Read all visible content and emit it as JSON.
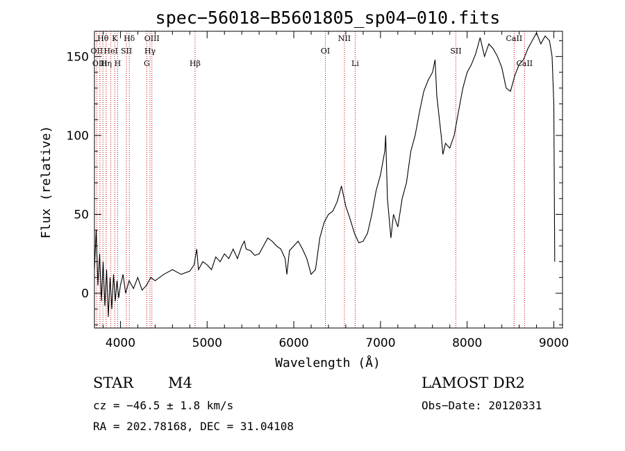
{
  "chart_data": {
    "type": "line",
    "title": "spec−56018−B5601805_sp04−010.fits",
    "xlabel": "Wavelength (Å)",
    "ylabel": "Flux (relative)",
    "xlim": [
      3700,
      9100
    ],
    "ylim": [
      -22,
      166
    ],
    "x_ticks": [
      4000,
      5000,
      6000,
      7000,
      8000,
      9000
    ],
    "y_ticks": [
      0,
      50,
      100,
      150
    ],
    "grid": false,
    "series": [
      {
        "color": "#000000",
        "points": [
          [
            3700,
            15
          ],
          [
            3720,
            40
          ],
          [
            3740,
            5
          ],
          [
            3760,
            25
          ],
          [
            3780,
            -5
          ],
          [
            3800,
            20
          ],
          [
            3820,
            -8
          ],
          [
            3840,
            15
          ],
          [
            3860,
            -15
          ],
          [
            3880,
            10
          ],
          [
            3900,
            -10
          ],
          [
            3920,
            12
          ],
          [
            3940,
            -5
          ],
          [
            3960,
            8
          ],
          [
            3980,
            -3
          ],
          [
            4000,
            5
          ],
          [
            4030,
            12
          ],
          [
            4060,
            0
          ],
          [
            4100,
            8
          ],
          [
            4150,
            3
          ],
          [
            4200,
            10
          ],
          [
            4250,
            2
          ],
          [
            4300,
            5
          ],
          [
            4350,
            10
          ],
          [
            4400,
            8
          ],
          [
            4500,
            12
          ],
          [
            4600,
            15
          ],
          [
            4700,
            12
          ],
          [
            4800,
            14
          ],
          [
            4850,
            18
          ],
          [
            4880,
            28
          ],
          [
            4900,
            15
          ],
          [
            4950,
            20
          ],
          [
            5000,
            18
          ],
          [
            5050,
            15
          ],
          [
            5100,
            23
          ],
          [
            5150,
            20
          ],
          [
            5200,
            25
          ],
          [
            5250,
            22
          ],
          [
            5300,
            28
          ],
          [
            5350,
            22
          ],
          [
            5400,
            30
          ],
          [
            5430,
            33
          ],
          [
            5450,
            28
          ],
          [
            5500,
            27
          ],
          [
            5550,
            24
          ],
          [
            5600,
            25
          ],
          [
            5650,
            30
          ],
          [
            5700,
            35
          ],
          [
            5750,
            33
          ],
          [
            5800,
            30
          ],
          [
            5850,
            28
          ],
          [
            5900,
            22
          ],
          [
            5920,
            12
          ],
          [
            5950,
            27
          ],
          [
            6000,
            30
          ],
          [
            6050,
            33
          ],
          [
            6100,
            28
          ],
          [
            6150,
            22
          ],
          [
            6200,
            12
          ],
          [
            6250,
            15
          ],
          [
            6300,
            35
          ],
          [
            6350,
            45
          ],
          [
            6400,
            50
          ],
          [
            6450,
            52
          ],
          [
            6500,
            58
          ],
          [
            6550,
            68
          ],
          [
            6600,
            55
          ],
          [
            6650,
            47
          ],
          [
            6700,
            38
          ],
          [
            6750,
            32
          ],
          [
            6800,
            33
          ],
          [
            6850,
            38
          ],
          [
            6900,
            50
          ],
          [
            6950,
            65
          ],
          [
            7000,
            75
          ],
          [
            7050,
            90
          ],
          [
            7060,
            100
          ],
          [
            7080,
            60
          ],
          [
            7120,
            35
          ],
          [
            7150,
            50
          ],
          [
            7200,
            42
          ],
          [
            7250,
            60
          ],
          [
            7300,
            70
          ],
          [
            7350,
            90
          ],
          [
            7400,
            100
          ],
          [
            7450,
            115
          ],
          [
            7500,
            128
          ],
          [
            7550,
            135
          ],
          [
            7600,
            140
          ],
          [
            7630,
            148
          ],
          [
            7650,
            125
          ],
          [
            7700,
            100
          ],
          [
            7720,
            88
          ],
          [
            7750,
            95
          ],
          [
            7800,
            92
          ],
          [
            7850,
            100
          ],
          [
            7900,
            115
          ],
          [
            7950,
            130
          ],
          [
            8000,
            140
          ],
          [
            8050,
            145
          ],
          [
            8100,
            152
          ],
          [
            8150,
            162
          ],
          [
            8200,
            150
          ],
          [
            8250,
            158
          ],
          [
            8300,
            155
          ],
          [
            8350,
            150
          ],
          [
            8400,
            143
          ],
          [
            8450,
            130
          ],
          [
            8500,
            128
          ],
          [
            8550,
            138
          ],
          [
            8600,
            145
          ],
          [
            8650,
            148
          ],
          [
            8700,
            155
          ],
          [
            8750,
            160
          ],
          [
            8800,
            165
          ],
          [
            8850,
            158
          ],
          [
            8900,
            163
          ],
          [
            8950,
            160
          ],
          [
            8980,
            150
          ],
          [
            9000,
            120
          ],
          [
            9010,
            20
          ]
        ]
      }
    ],
    "line_markers": [
      {
        "label": "Hθ",
        "x": 3798,
        "row": 0
      },
      {
        "label": "K",
        "x": 3934,
        "row": 0
      },
      {
        "label": "Hδ",
        "x": 4102,
        "row": 0
      },
      {
        "label": "OIII",
        "x": 4363,
        "row": 0
      },
      {
        "label": "NII",
        "x": 6584,
        "row": 0
      },
      {
        "label": "CaII",
        "x": 8542,
        "row": 0
      },
      {
        "label": "OII",
        "x": 3727,
        "row": 1
      },
      {
        "label": "HeI",
        "x": 3889,
        "row": 1
      },
      {
        "label": "SII",
        "x": 4069,
        "row": 1
      },
      {
        "label": "Hγ",
        "x": 4341,
        "row": 1
      },
      {
        "label": "OI",
        "x": 6364,
        "row": 1
      },
      {
        "label": "SII",
        "x": 7870,
        "row": 1
      },
      {
        "label": "OIII",
        "x": 3763,
        "row": 2
      },
      {
        "label": "Hη",
        "x": 3835,
        "row": 2
      },
      {
        "label": "H",
        "x": 3968,
        "row": 2
      },
      {
        "label": "G",
        "x": 4304,
        "row": 2
      },
      {
        "label": "Hβ",
        "x": 4861,
        "row": 2
      },
      {
        "label": "Li",
        "x": 6708,
        "row": 2
      },
      {
        "label": "CaII",
        "x": 8662,
        "row": 2
      }
    ],
    "marker_color": "#c00000"
  },
  "info": {
    "class": "STAR",
    "subclass": "M4",
    "survey": "LAMOST DR2",
    "cz": "cz = −46.5 ± 1.8 km/s",
    "obs_date": "Obs−Date: 20120331",
    "coords": "RA = 202.78168, DEC =  31.04108"
  }
}
